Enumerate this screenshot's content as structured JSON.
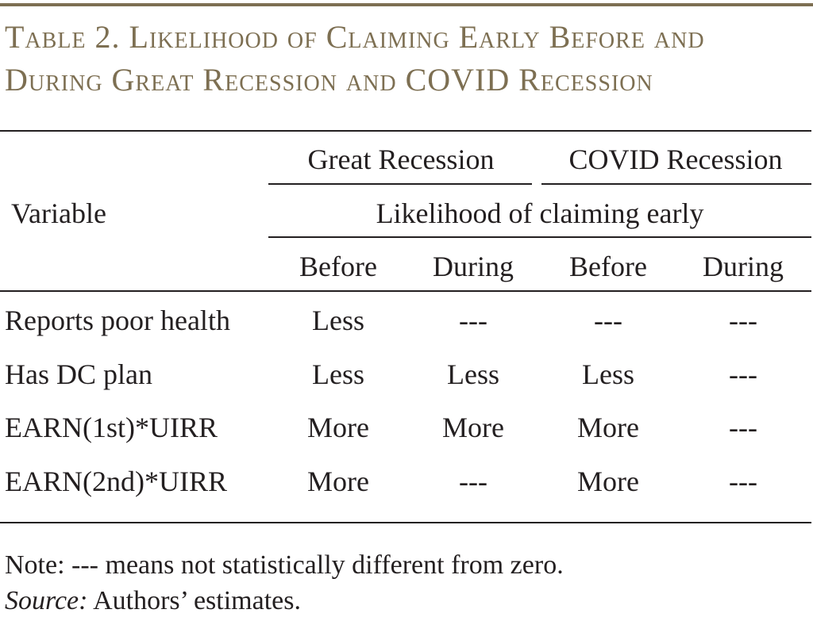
{
  "title": "Table 2. Likelihood of Claiming Early Before and During Great Recession and COVID Recession",
  "accent_color": "#7d6f52",
  "table": {
    "variable_header": "Variable",
    "group_headers": [
      "Great Recession",
      "COVID Recession"
    ],
    "spanning_header": "Likelihood of claiming early",
    "sub_headers": [
      "Before",
      "During",
      "Before",
      "During"
    ],
    "rows": [
      {
        "label": "Reports poor health",
        "values": [
          "Less",
          "---",
          "---",
          "---"
        ]
      },
      {
        "label": "Has DC plan",
        "values": [
          "Less",
          "Less",
          "Less",
          "---"
        ]
      },
      {
        "label": "EARN(1st)*UIRR",
        "values": [
          "More",
          "More",
          "More",
          "---"
        ]
      },
      {
        "label": "EARN(2nd)*UIRR",
        "values": [
          "More",
          "---",
          "More",
          "---"
        ]
      }
    ]
  },
  "note": {
    "text": "Note: --- means not statistically different from zero.",
    "source_label": "Source:",
    "source_text": " Authors’ estimates."
  }
}
